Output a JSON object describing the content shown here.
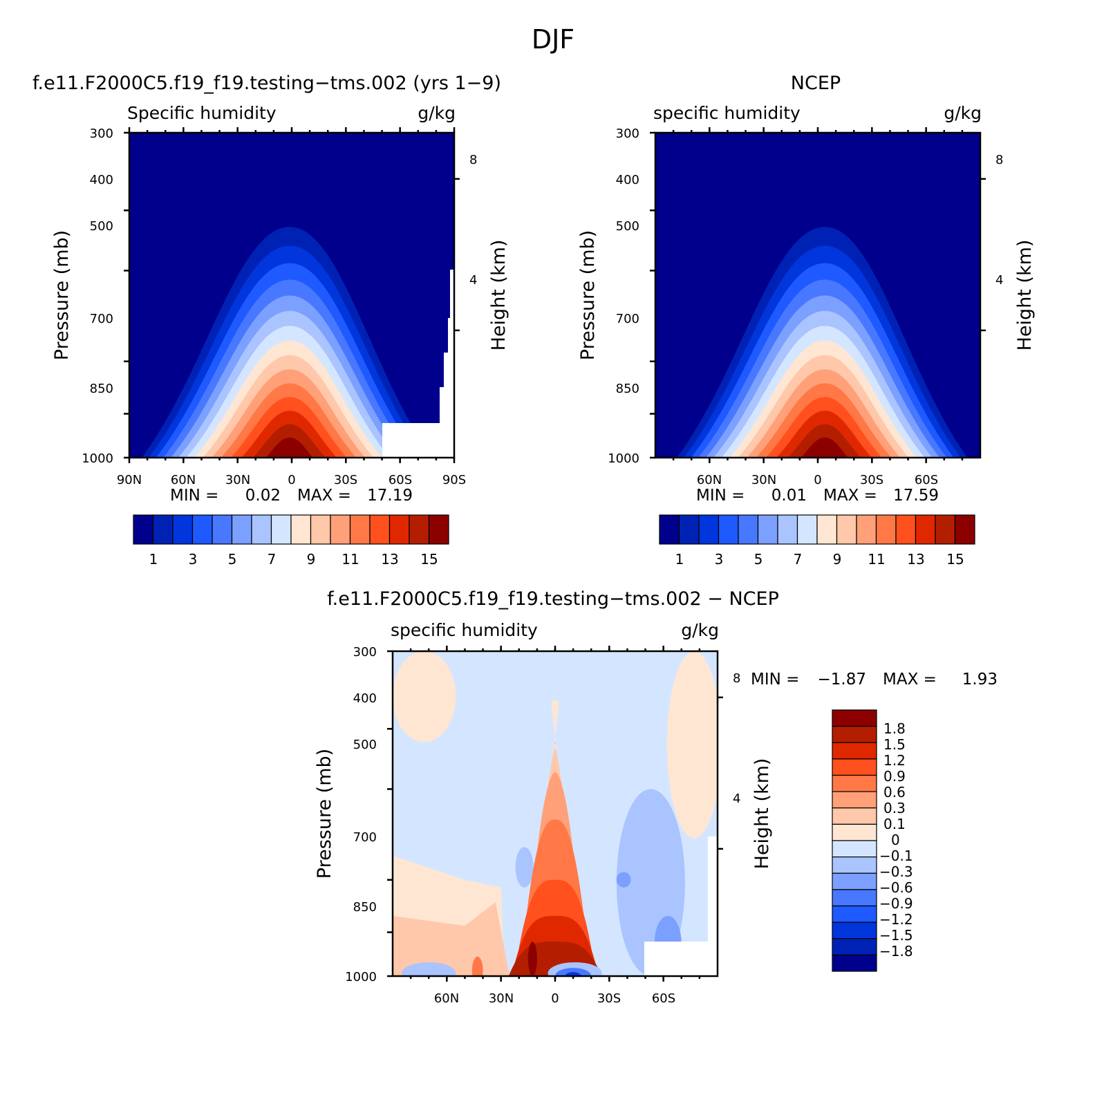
{
  "figure": {
    "title": "DJF"
  },
  "colors": {
    "abs_scale": [
      "#00008c",
      "#0022b4",
      "#0036dc",
      "#1e5aff",
      "#4878ff",
      "#7ca0ff",
      "#aac4ff",
      "#d4e6ff",
      "#ffe6d2",
      "#ffc8aa",
      "#ffa078",
      "#ff7846",
      "#ff501e",
      "#e02800",
      "#b41e00",
      "#8c0000"
    ],
    "diff_scale": [
      "#00008c",
      "#0022b4",
      "#0036dc",
      "#1e5aff",
      "#4878ff",
      "#7ca0ff",
      "#aac4ff",
      "#d4e6ff",
      "#ffe6d2",
      "#ffc8aa",
      "#ffa078",
      "#ff7846",
      "#ff501e",
      "#e02800",
      "#b41e00",
      "#8c0000"
    ]
  },
  "chart_data": [
    {
      "type": "heatmap",
      "title": "f.e11.F2000C5.f19_f19.testing−tms.002 (yrs 1−9)",
      "left_string": "Specific humidity",
      "right_string": "g/kg",
      "ylabel": "Pressure (mb)",
      "ylabel_right": "Height (km)",
      "x_ticks": [
        "90N",
        "60N",
        "30N",
        "0",
        "30S",
        "60S",
        "90S"
      ],
      "y_ticks": [
        "300",
        "400",
        "500",
        "700",
        "850",
        "1000"
      ],
      "right_ticks": [
        "8",
        "4"
      ],
      "min_label": "MIN =",
      "min_value": "0.02",
      "max_label": "MAX =",
      "max_value": "17.19",
      "colorbar_labels": [
        "1",
        "3",
        "5",
        "7",
        "9",
        "11",
        "13",
        "15"
      ],
      "x_range": [
        90,
        -90
      ],
      "y_range": [
        300,
        1000
      ],
      "y_scale": "log",
      "peak_latitude": 0,
      "peak_value": 17.19,
      "missing_region": "south-polar surface below ~900 mb"
    },
    {
      "type": "heatmap",
      "title": "NCEP",
      "left_string": "specific humidity",
      "right_string": "g/kg",
      "ylabel": "Pressure (mb)",
      "ylabel_right": "Height (km)",
      "x_ticks": [
        "60N",
        "30N",
        "0",
        "30S",
        "60S"
      ],
      "y_ticks": [
        "300",
        "400",
        "500",
        "700",
        "850",
        "1000"
      ],
      "right_ticks": [
        "8",
        "4"
      ],
      "min_label": "MIN =",
      "min_value": "0.01",
      "max_label": "MAX =",
      "max_value": "17.59",
      "colorbar_labels": [
        "1",
        "3",
        "5",
        "7",
        "9",
        "11",
        "13",
        "15"
      ],
      "x_range": [
        90,
        -90
      ],
      "y_range": [
        300,
        1000
      ],
      "y_scale": "log",
      "peak_latitude": -5,
      "peak_value": 17.59
    },
    {
      "type": "heatmap",
      "title": "f.e11.F2000C5.f19_f19.testing−tms.002 − NCEP",
      "left_string": "specific humidity",
      "right_string": "g/kg",
      "ylabel": "Pressure (mb)",
      "ylabel_right": "Height (km)",
      "x_ticks": [
        "60N",
        "30N",
        "0",
        "30S",
        "60S"
      ],
      "y_ticks": [
        "300",
        "400",
        "500",
        "700",
        "850",
        "1000"
      ],
      "right_ticks": [
        "8",
        "4"
      ],
      "min_label": "MIN =",
      "min_value": "−1.87",
      "max_label": "MAX =",
      "max_value": "1.93",
      "colorbar_labels": [
        "1.8",
        "1.5",
        "1.2",
        "0.9",
        "0.6",
        "0.3",
        "0.1",
        "0",
        "−0.1",
        "−0.3",
        "−0.6",
        "−0.9",
        "−1.2",
        "−1.5",
        "−1.8"
      ],
      "x_range": [
        90,
        -90
      ],
      "y_range": [
        300,
        1000
      ],
      "y_scale": "log"
    }
  ]
}
